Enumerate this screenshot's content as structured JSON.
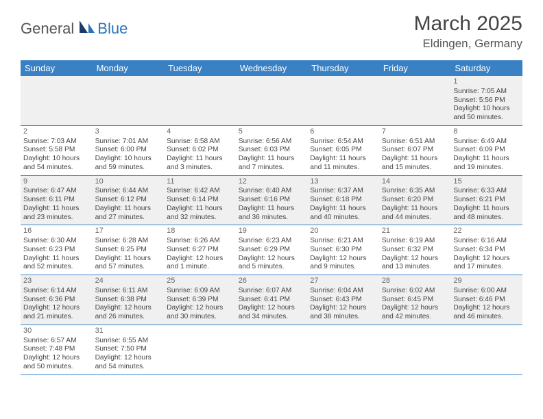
{
  "logo": {
    "general": "General",
    "blue": "Blue"
  },
  "title": "March 2025",
  "location": "Eldingen, Germany",
  "colors": {
    "header_bg": "#3a81c4",
    "header_text": "#ffffff",
    "alt_row_bg": "#f0f0f0",
    "border": "#3a81c4",
    "text": "#444444",
    "logo_gray": "#555555",
    "logo_blue": "#2a74b8"
  },
  "typography": {
    "title_fontsize": 30,
    "location_fontsize": 17,
    "dayheader_fontsize": 13,
    "cell_fontsize": 10.2,
    "daynum_fontsize": 11
  },
  "day_headers": [
    "Sunday",
    "Monday",
    "Tuesday",
    "Wednesday",
    "Thursday",
    "Friday",
    "Saturday"
  ],
  "weeks": [
    [
      null,
      null,
      null,
      null,
      null,
      null,
      {
        "d": "1",
        "sr": "Sunrise: 7:05 AM",
        "ss": "Sunset: 5:56 PM",
        "dl1": "Daylight: 10 hours",
        "dl2": "and 50 minutes."
      }
    ],
    [
      {
        "d": "2",
        "sr": "Sunrise: 7:03 AM",
        "ss": "Sunset: 5:58 PM",
        "dl1": "Daylight: 10 hours",
        "dl2": "and 54 minutes."
      },
      {
        "d": "3",
        "sr": "Sunrise: 7:01 AM",
        "ss": "Sunset: 6:00 PM",
        "dl1": "Daylight: 10 hours",
        "dl2": "and 59 minutes."
      },
      {
        "d": "4",
        "sr": "Sunrise: 6:58 AM",
        "ss": "Sunset: 6:02 PM",
        "dl1": "Daylight: 11 hours",
        "dl2": "and 3 minutes."
      },
      {
        "d": "5",
        "sr": "Sunrise: 6:56 AM",
        "ss": "Sunset: 6:03 PM",
        "dl1": "Daylight: 11 hours",
        "dl2": "and 7 minutes."
      },
      {
        "d": "6",
        "sr": "Sunrise: 6:54 AM",
        "ss": "Sunset: 6:05 PM",
        "dl1": "Daylight: 11 hours",
        "dl2": "and 11 minutes."
      },
      {
        "d": "7",
        "sr": "Sunrise: 6:51 AM",
        "ss": "Sunset: 6:07 PM",
        "dl1": "Daylight: 11 hours",
        "dl2": "and 15 minutes."
      },
      {
        "d": "8",
        "sr": "Sunrise: 6:49 AM",
        "ss": "Sunset: 6:09 PM",
        "dl1": "Daylight: 11 hours",
        "dl2": "and 19 minutes."
      }
    ],
    [
      {
        "d": "9",
        "sr": "Sunrise: 6:47 AM",
        "ss": "Sunset: 6:11 PM",
        "dl1": "Daylight: 11 hours",
        "dl2": "and 23 minutes."
      },
      {
        "d": "10",
        "sr": "Sunrise: 6:44 AM",
        "ss": "Sunset: 6:12 PM",
        "dl1": "Daylight: 11 hours",
        "dl2": "and 27 minutes."
      },
      {
        "d": "11",
        "sr": "Sunrise: 6:42 AM",
        "ss": "Sunset: 6:14 PM",
        "dl1": "Daylight: 11 hours",
        "dl2": "and 32 minutes."
      },
      {
        "d": "12",
        "sr": "Sunrise: 6:40 AM",
        "ss": "Sunset: 6:16 PM",
        "dl1": "Daylight: 11 hours",
        "dl2": "and 36 minutes."
      },
      {
        "d": "13",
        "sr": "Sunrise: 6:37 AM",
        "ss": "Sunset: 6:18 PM",
        "dl1": "Daylight: 11 hours",
        "dl2": "and 40 minutes."
      },
      {
        "d": "14",
        "sr": "Sunrise: 6:35 AM",
        "ss": "Sunset: 6:20 PM",
        "dl1": "Daylight: 11 hours",
        "dl2": "and 44 minutes."
      },
      {
        "d": "15",
        "sr": "Sunrise: 6:33 AM",
        "ss": "Sunset: 6:21 PM",
        "dl1": "Daylight: 11 hours",
        "dl2": "and 48 minutes."
      }
    ],
    [
      {
        "d": "16",
        "sr": "Sunrise: 6:30 AM",
        "ss": "Sunset: 6:23 PM",
        "dl1": "Daylight: 11 hours",
        "dl2": "and 52 minutes."
      },
      {
        "d": "17",
        "sr": "Sunrise: 6:28 AM",
        "ss": "Sunset: 6:25 PM",
        "dl1": "Daylight: 11 hours",
        "dl2": "and 57 minutes."
      },
      {
        "d": "18",
        "sr": "Sunrise: 6:26 AM",
        "ss": "Sunset: 6:27 PM",
        "dl1": "Daylight: 12 hours",
        "dl2": "and 1 minute."
      },
      {
        "d": "19",
        "sr": "Sunrise: 6:23 AM",
        "ss": "Sunset: 6:29 PM",
        "dl1": "Daylight: 12 hours",
        "dl2": "and 5 minutes."
      },
      {
        "d": "20",
        "sr": "Sunrise: 6:21 AM",
        "ss": "Sunset: 6:30 PM",
        "dl1": "Daylight: 12 hours",
        "dl2": "and 9 minutes."
      },
      {
        "d": "21",
        "sr": "Sunrise: 6:19 AM",
        "ss": "Sunset: 6:32 PM",
        "dl1": "Daylight: 12 hours",
        "dl2": "and 13 minutes."
      },
      {
        "d": "22",
        "sr": "Sunrise: 6:16 AM",
        "ss": "Sunset: 6:34 PM",
        "dl1": "Daylight: 12 hours",
        "dl2": "and 17 minutes."
      }
    ],
    [
      {
        "d": "23",
        "sr": "Sunrise: 6:14 AM",
        "ss": "Sunset: 6:36 PM",
        "dl1": "Daylight: 12 hours",
        "dl2": "and 21 minutes."
      },
      {
        "d": "24",
        "sr": "Sunrise: 6:11 AM",
        "ss": "Sunset: 6:38 PM",
        "dl1": "Daylight: 12 hours",
        "dl2": "and 26 minutes."
      },
      {
        "d": "25",
        "sr": "Sunrise: 6:09 AM",
        "ss": "Sunset: 6:39 PM",
        "dl1": "Daylight: 12 hours",
        "dl2": "and 30 minutes."
      },
      {
        "d": "26",
        "sr": "Sunrise: 6:07 AM",
        "ss": "Sunset: 6:41 PM",
        "dl1": "Daylight: 12 hours",
        "dl2": "and 34 minutes."
      },
      {
        "d": "27",
        "sr": "Sunrise: 6:04 AM",
        "ss": "Sunset: 6:43 PM",
        "dl1": "Daylight: 12 hours",
        "dl2": "and 38 minutes."
      },
      {
        "d": "28",
        "sr": "Sunrise: 6:02 AM",
        "ss": "Sunset: 6:45 PM",
        "dl1": "Daylight: 12 hours",
        "dl2": "and 42 minutes."
      },
      {
        "d": "29",
        "sr": "Sunrise: 6:00 AM",
        "ss": "Sunset: 6:46 PM",
        "dl1": "Daylight: 12 hours",
        "dl2": "and 46 minutes."
      }
    ],
    [
      {
        "d": "30",
        "sr": "Sunrise: 6:57 AM",
        "ss": "Sunset: 7:48 PM",
        "dl1": "Daylight: 12 hours",
        "dl2": "and 50 minutes."
      },
      {
        "d": "31",
        "sr": "Sunrise: 6:55 AM",
        "ss": "Sunset: 7:50 PM",
        "dl1": "Daylight: 12 hours",
        "dl2": "and 54 minutes."
      },
      null,
      null,
      null,
      null,
      null
    ]
  ]
}
